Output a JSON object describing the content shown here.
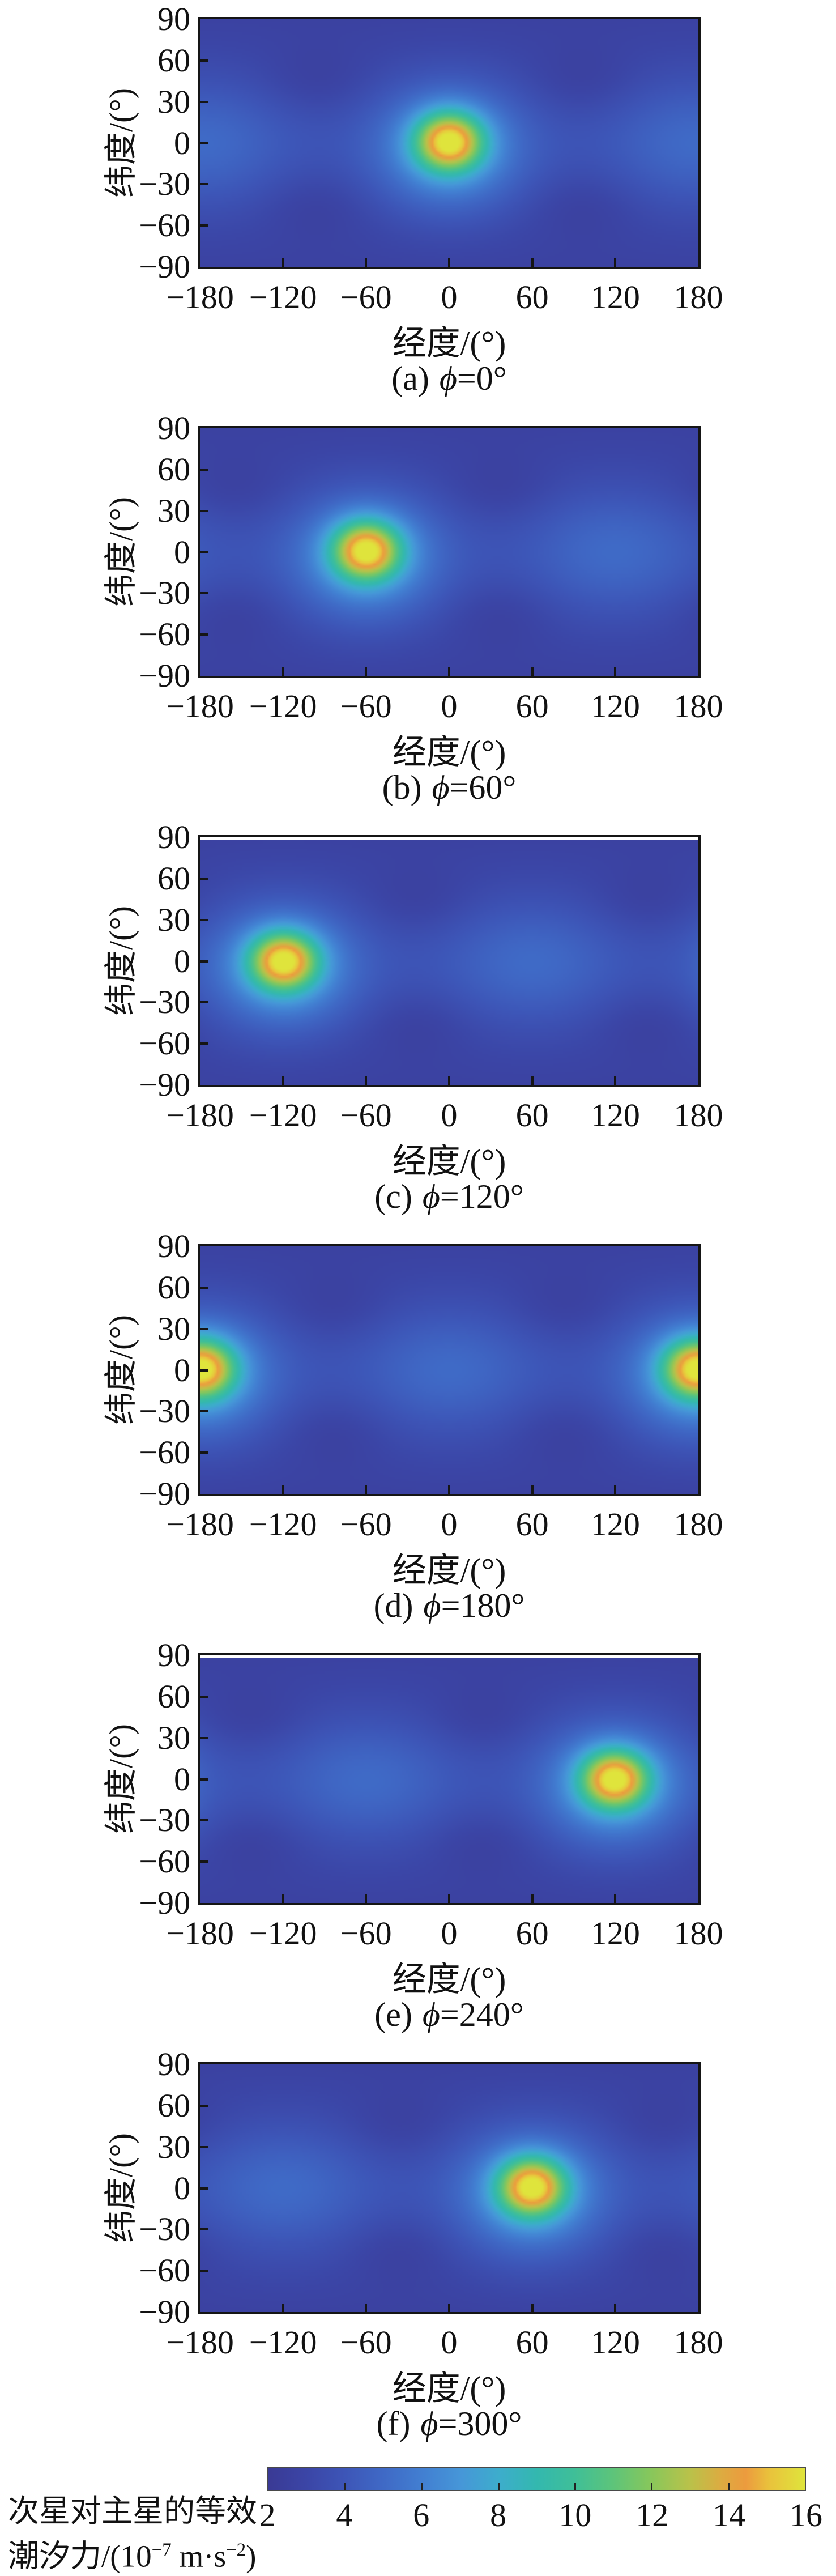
{
  "chart_data": {
    "type": "heatmap",
    "layout": "6 stacked longitude-latitude maps sharing one horizontal colorbar",
    "xlabel": "经度/(°)",
    "ylabel": "纬度/(°)",
    "phi_symbol": "ϕ",
    "x_range": [
      -180,
      180
    ],
    "y_range": [
      -90,
      90
    ],
    "x_ticks": [
      -180,
      -120,
      -60,
      0,
      60,
      120,
      180
    ],
    "x_tick_labels": [
      "−180",
      "−120",
      "−60",
      "0",
      "60",
      "120",
      "180"
    ],
    "x_inner_tickmarks": [
      -120,
      -60,
      0,
      60,
      120
    ],
    "y_ticks": [
      90,
      60,
      30,
      0,
      -30,
      -60,
      -90
    ],
    "y_tick_labels": [
      "90",
      "60",
      "30",
      "0",
      "−30",
      "−60",
      "−90"
    ],
    "y_inner_tickmarks": [
      60,
      30,
      0,
      -30,
      -60
    ],
    "grid": false,
    "panels": [
      {
        "id": "a",
        "caption_label": "(a)",
        "caption_value": "=0°",
        "phi_deg": 0,
        "lon0": 0,
        "peak_lat": 2,
        "peak_value": 16,
        "background_value": 3,
        "top_gap": false
      },
      {
        "id": "b",
        "caption_label": "(b)",
        "caption_value": "=60°",
        "phi_deg": 60,
        "lon0": -60,
        "peak_lat": 2,
        "peak_value": 16,
        "background_value": 3,
        "top_gap": false
      },
      {
        "id": "c",
        "caption_label": "(c)",
        "caption_value": "=120°",
        "phi_deg": 120,
        "lon0": -120,
        "peak_lat": 2,
        "peak_value": 16,
        "background_value": 3,
        "top_gap": true
      },
      {
        "id": "d",
        "caption_label": "(d)",
        "caption_value": "=180°",
        "phi_deg": 180,
        "lon0": 180,
        "peak_lat": 2,
        "peak_value": 16,
        "background_value": 3,
        "top_gap": false
      },
      {
        "id": "e",
        "caption_label": "(e)",
        "caption_value": "=240°",
        "phi_deg": 240,
        "lon0": 120,
        "peak_lat": 2,
        "peak_value": 16,
        "background_value": 3,
        "top_gap": true
      },
      {
        "id": "f",
        "caption_label": "(f)",
        "caption_value": "=300°",
        "phi_deg": 300,
        "lon0": 60,
        "peak_lat": 2,
        "peak_value": 16,
        "background_value": 3,
        "top_gap": false
      }
    ],
    "colorbar": {
      "min": 2,
      "max": 16,
      "ticks": [
        2,
        4,
        6,
        8,
        10,
        12,
        14,
        16
      ],
      "tick_labels": [
        "2",
        "4",
        "6",
        "8",
        "10",
        "12",
        "14",
        "16"
      ],
      "inner_tickmarks": [
        4,
        6,
        8,
        10,
        12,
        14
      ],
      "label_line1": "次星对主星的等效",
      "label_line2_pre": "潮汐力/(10",
      "label_line2_sup1": "−7",
      "label_line2_mid": " m·s",
      "label_line2_sup2": "−2",
      "label_line2_post": ")"
    },
    "colormap_stops": [
      {
        "t": 0.0,
        "hex": "#3a3a95"
      },
      {
        "t": 0.07,
        "hex": "#3b45a6"
      },
      {
        "t": 0.14,
        "hex": "#3d55b7"
      },
      {
        "t": 0.21,
        "hex": "#3f68c5"
      },
      {
        "t": 0.29,
        "hex": "#4280d2"
      },
      {
        "t": 0.36,
        "hex": "#4697d8"
      },
      {
        "t": 0.43,
        "hex": "#3dadcc"
      },
      {
        "t": 0.5,
        "hex": "#33b8af"
      },
      {
        "t": 0.57,
        "hex": "#3fbf98"
      },
      {
        "t": 0.64,
        "hex": "#5cc47b"
      },
      {
        "t": 0.71,
        "hex": "#86c75c"
      },
      {
        "t": 0.785,
        "hex": "#b9c24a"
      },
      {
        "t": 0.845,
        "hex": "#ddab41"
      },
      {
        "t": 0.89,
        "hex": "#ec9b3e"
      },
      {
        "t": 0.935,
        "hex": "#e9c33c"
      },
      {
        "t": 1.0,
        "hex": "#dfe43c"
      }
    ],
    "field_model": {
      "base": 3.1,
      "polar_darkening_amp": 0.4,
      "equator_band": {
        "amp": 0.45,
        "sigma_lat": 42
      },
      "main": {
        "amp": 9.6,
        "sigma_lon": 24,
        "sigma_lat": 21,
        "lat": 1
      },
      "skirt": {
        "amp": 3.8,
        "sigma_lon": 52,
        "sigma_lat": 46,
        "lat": -4
      },
      "antipode": {
        "amp": 1.5,
        "sigma_lon": 62,
        "sigma_lat": 48
      },
      "dark_spots": {
        "amp": 0.5,
        "dlon": 97,
        "dlat": 46,
        "sigma_lon": 36,
        "sigma_lat": 25
      }
    }
  }
}
